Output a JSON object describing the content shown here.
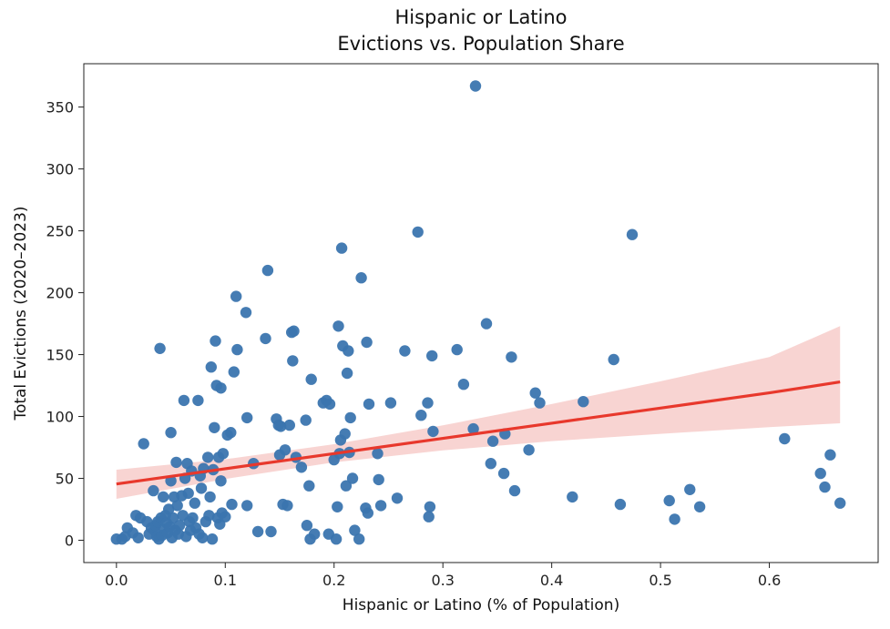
{
  "chart_data": {
    "type": "scatter",
    "title": "Hispanic or Latino",
    "subtitle": "Evictions vs. Population Share",
    "xlabel": "Hispanic or Latino (% of Population)",
    "ylabel": "Total Evictions (2020–2023)",
    "xlim": [
      -0.03,
      0.7
    ],
    "ylim": [
      -18,
      385
    ],
    "xticks": [
      0.0,
      0.1,
      0.2,
      0.3,
      0.4,
      0.5,
      0.6
    ],
    "xtick_labels": [
      "0.0",
      "0.1",
      "0.2",
      "0.3",
      "0.4",
      "0.5",
      "0.6"
    ],
    "yticks": [
      0,
      50,
      100,
      150,
      200,
      250,
      300,
      350
    ],
    "ytick_labels": [
      "0",
      "50",
      "100",
      "150",
      "200",
      "250",
      "300",
      "350"
    ],
    "grid": false,
    "colors": {
      "points": "#3b75af",
      "regression": "#e8382c",
      "band": "#f4b8b4"
    },
    "points": [
      [
        0.0,
        1
      ],
      [
        0.005,
        1
      ],
      [
        0.008,
        3
      ],
      [
        0.01,
        10
      ],
      [
        0.015,
        6
      ],
      [
        0.018,
        20
      ],
      [
        0.02,
        2
      ],
      [
        0.022,
        18
      ],
      [
        0.025,
        78
      ],
      [
        0.028,
        15
      ],
      [
        0.03,
        5
      ],
      [
        0.032,
        10
      ],
      [
        0.034,
        40
      ],
      [
        0.035,
        8
      ],
      [
        0.036,
        12
      ],
      [
        0.037,
        3
      ],
      [
        0.038,
        15
      ],
      [
        0.039,
        1
      ],
      [
        0.04,
        155
      ],
      [
        0.041,
        18
      ],
      [
        0.042,
        4
      ],
      [
        0.043,
        35
      ],
      [
        0.044,
        9
      ],
      [
        0.045,
        20
      ],
      [
        0.046,
        14
      ],
      [
        0.047,
        6
      ],
      [
        0.048,
        25
      ],
      [
        0.049,
        11
      ],
      [
        0.05,
        87
      ],
      [
        0.05,
        48
      ],
      [
        0.051,
        2
      ],
      [
        0.052,
        18
      ],
      [
        0.053,
        35
      ],
      [
        0.054,
        8
      ],
      [
        0.055,
        63
      ],
      [
        0.056,
        28
      ],
      [
        0.057,
        5
      ],
      [
        0.058,
        12
      ],
      [
        0.06,
        36
      ],
      [
        0.061,
        20
      ],
      [
        0.062,
        113
      ],
      [
        0.063,
        50
      ],
      [
        0.064,
        3
      ],
      [
        0.065,
        62
      ],
      [
        0.066,
        38
      ],
      [
        0.067,
        15
      ],
      [
        0.068,
        8
      ],
      [
        0.069,
        56
      ],
      [
        0.07,
        18
      ],
      [
        0.072,
        30
      ],
      [
        0.073,
        10
      ],
      [
        0.075,
        113
      ],
      [
        0.076,
        5
      ],
      [
        0.077,
        52
      ],
      [
        0.078,
        42
      ],
      [
        0.079,
        2
      ],
      [
        0.08,
        58
      ],
      [
        0.082,
        15
      ],
      [
        0.084,
        67
      ],
      [
        0.085,
        20
      ],
      [
        0.086,
        35
      ],
      [
        0.087,
        140
      ],
      [
        0.088,
        1
      ],
      [
        0.089,
        57
      ],
      [
        0.09,
        91
      ],
      [
        0.091,
        161
      ],
      [
        0.092,
        125
      ],
      [
        0.093,
        18
      ],
      [
        0.094,
        67
      ],
      [
        0.095,
        13
      ],
      [
        0.096,
        123
      ],
      [
        0.096,
        48
      ],
      [
        0.097,
        22
      ],
      [
        0.098,
        70
      ],
      [
        0.1,
        19
      ],
      [
        0.102,
        85
      ],
      [
        0.105,
        87
      ],
      [
        0.106,
        29
      ],
      [
        0.108,
        136
      ],
      [
        0.11,
        197
      ],
      [
        0.111,
        154
      ],
      [
        0.119,
        184
      ],
      [
        0.12,
        99
      ],
      [
        0.12,
        28
      ],
      [
        0.126,
        62
      ],
      [
        0.13,
        7
      ],
      [
        0.137,
        163
      ],
      [
        0.139,
        218
      ],
      [
        0.142,
        7
      ],
      [
        0.147,
        98
      ],
      [
        0.149,
        93
      ],
      [
        0.15,
        69
      ],
      [
        0.151,
        92
      ],
      [
        0.153,
        29
      ],
      [
        0.155,
        73
      ],
      [
        0.157,
        28
      ],
      [
        0.159,
        93
      ],
      [
        0.161,
        168
      ],
      [
        0.162,
        145
      ],
      [
        0.163,
        169
      ],
      [
        0.165,
        67
      ],
      [
        0.17,
        59
      ],
      [
        0.174,
        97
      ],
      [
        0.175,
        12
      ],
      [
        0.177,
        44
      ],
      [
        0.178,
        1
      ],
      [
        0.179,
        130
      ],
      [
        0.182,
        5
      ],
      [
        0.19,
        111
      ],
      [
        0.193,
        113
      ],
      [
        0.195,
        5
      ],
      [
        0.196,
        110
      ],
      [
        0.2,
        65
      ],
      [
        0.202,
        1
      ],
      [
        0.203,
        27
      ],
      [
        0.204,
        173
      ],
      [
        0.205,
        70
      ],
      [
        0.206,
        81
      ],
      [
        0.207,
        236
      ],
      [
        0.208,
        157
      ],
      [
        0.21,
        86
      ],
      [
        0.211,
        44
      ],
      [
        0.212,
        135
      ],
      [
        0.213,
        153
      ],
      [
        0.214,
        71
      ],
      [
        0.215,
        99
      ],
      [
        0.217,
        50
      ],
      [
        0.219,
        8
      ],
      [
        0.223,
        1
      ],
      [
        0.225,
        212
      ],
      [
        0.229,
        26
      ],
      [
        0.23,
        160
      ],
      [
        0.231,
        22
      ],
      [
        0.232,
        110
      ],
      [
        0.24,
        70
      ],
      [
        0.241,
        49
      ],
      [
        0.243,
        28
      ],
      [
        0.252,
        111
      ],
      [
        0.258,
        34
      ],
      [
        0.265,
        153
      ],
      [
        0.277,
        249
      ],
      [
        0.28,
        101
      ],
      [
        0.286,
        111
      ],
      [
        0.287,
        19
      ],
      [
        0.288,
        27
      ],
      [
        0.29,
        149
      ],
      [
        0.291,
        88
      ],
      [
        0.313,
        154
      ],
      [
        0.319,
        126
      ],
      [
        0.328,
        90
      ],
      [
        0.33,
        367
      ],
      [
        0.34,
        175
      ],
      [
        0.344,
        62
      ],
      [
        0.346,
        80
      ],
      [
        0.356,
        54
      ],
      [
        0.357,
        86
      ],
      [
        0.363,
        148
      ],
      [
        0.366,
        40
      ],
      [
        0.379,
        73
      ],
      [
        0.385,
        119
      ],
      [
        0.389,
        111
      ],
      [
        0.419,
        35
      ],
      [
        0.429,
        112
      ],
      [
        0.457,
        146
      ],
      [
        0.463,
        29
      ],
      [
        0.474,
        247
      ],
      [
        0.508,
        32
      ],
      [
        0.513,
        17
      ],
      [
        0.527,
        41
      ],
      [
        0.536,
        27
      ],
      [
        0.614,
        82
      ],
      [
        0.647,
        54
      ],
      [
        0.651,
        43
      ],
      [
        0.656,
        69
      ],
      [
        0.665,
        30
      ]
    ],
    "regression": {
      "x": [
        0.0,
        0.1,
        0.2,
        0.3,
        0.4,
        0.5,
        0.6,
        0.665
      ],
      "y": [
        45.5,
        57.8,
        70.0,
        82.3,
        94.6,
        106.8,
        119.1,
        127.9
      ],
      "ci_low": [
        33.5,
        49.5,
        63.0,
        72.6,
        80.1,
        86.0,
        91.4,
        94.5
      ],
      "ci_high": [
        57.0,
        65.5,
        77.6,
        92.8,
        110.0,
        128.4,
        148.0,
        173.0
      ]
    }
  }
}
